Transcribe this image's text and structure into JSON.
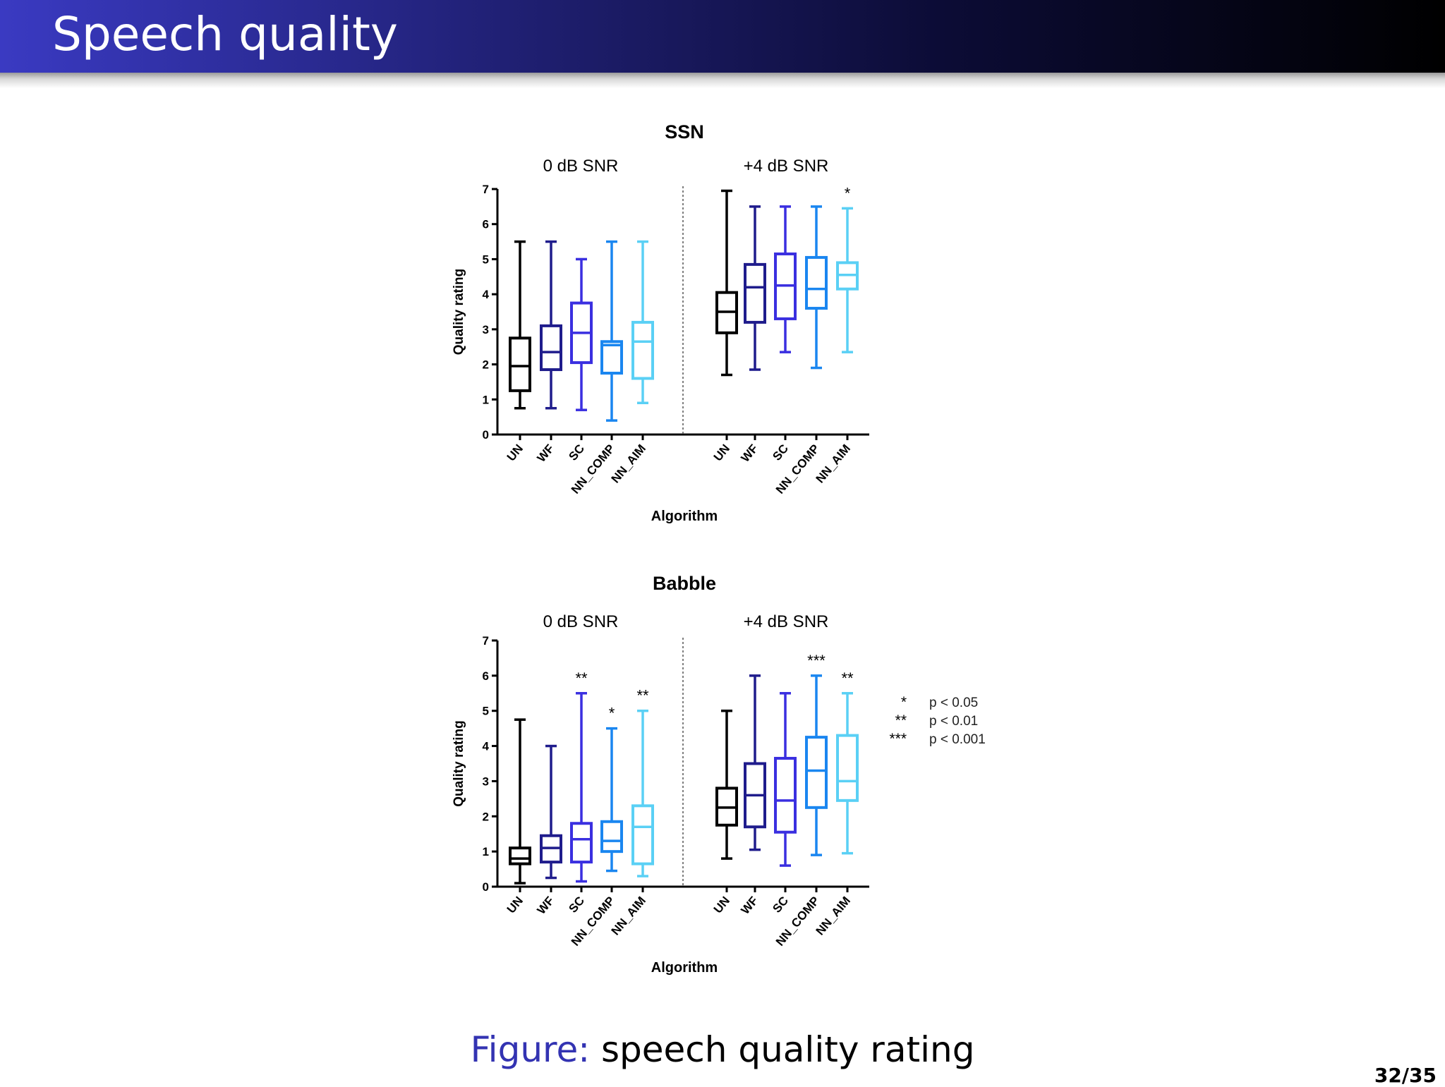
{
  "slide": {
    "title": "Speech quality",
    "caption_label": "Figure:",
    "caption_text": "speech quality rating",
    "page_number": "32/35"
  },
  "colors": {
    "UN": "#000000",
    "WF": "#1f1c8c",
    "SC": "#3a2fe0",
    "NN_COMP": "#1a86f0",
    "NN_AIM": "#5ad0f5"
  },
  "chart_data": [
    {
      "type": "box",
      "title": "SSN",
      "ylabel": "Quality rating",
      "xlabel": "Algorithm",
      "ylim": [
        0,
        7
      ],
      "yticks": [
        "0",
        "1",
        "2",
        "3",
        "4",
        "5",
        "6",
        "7"
      ],
      "categories": [
        "UN",
        "WF",
        "SC",
        "NN_COMP",
        "NN_AIM"
      ],
      "panels": [
        {
          "label": "0 dB SNR",
          "boxes": [
            {
              "category": "UN",
              "min": 0.75,
              "q1": 1.25,
              "median": 1.95,
              "q3": 2.75,
              "max": 5.5,
              "sig": ""
            },
            {
              "category": "WF",
              "min": 0.75,
              "q1": 1.85,
              "median": 2.35,
              "q3": 3.1,
              "max": 5.5,
              "sig": ""
            },
            {
              "category": "SC",
              "min": 0.7,
              "q1": 2.05,
              "median": 2.9,
              "q3": 3.75,
              "max": 5.0,
              "sig": ""
            },
            {
              "category": "NN_COMP",
              "min": 0.4,
              "q1": 1.75,
              "median": 2.55,
              "q3": 2.65,
              "max": 5.5,
              "sig": ""
            },
            {
              "category": "NN_AIM",
              "min": 0.9,
              "q1": 1.6,
              "median": 2.65,
              "q3": 3.2,
              "max": 5.5,
              "sig": ""
            }
          ]
        },
        {
          "label": "+4 dB SNR",
          "boxes": [
            {
              "category": "UN",
              "min": 1.7,
              "q1": 2.9,
              "median": 3.5,
              "q3": 4.05,
              "max": 6.95,
              "sig": ""
            },
            {
              "category": "WF",
              "min": 1.85,
              "q1": 3.2,
              "median": 4.2,
              "q3": 4.85,
              "max": 6.5,
              "sig": ""
            },
            {
              "category": "SC",
              "min": 2.35,
              "q1": 3.3,
              "median": 4.25,
              "q3": 5.15,
              "max": 6.5,
              "sig": ""
            },
            {
              "category": "NN_COMP",
              "min": 1.9,
              "q1": 3.6,
              "median": 4.15,
              "q3": 5.05,
              "max": 6.5,
              "sig": ""
            },
            {
              "category": "NN_AIM",
              "min": 2.35,
              "q1": 4.15,
              "median": 4.55,
              "q3": 4.9,
              "max": 6.45,
              "sig": "*"
            }
          ]
        }
      ]
    },
    {
      "type": "box",
      "title": "Babble",
      "ylabel": "Quality rating",
      "xlabel": "Algorithm",
      "ylim": [
        0,
        7
      ],
      "yticks": [
        "0",
        "1",
        "2",
        "3",
        "4",
        "5",
        "6",
        "7"
      ],
      "categories": [
        "UN",
        "WF",
        "SC",
        "NN_COMP",
        "NN_AIM"
      ],
      "panels": [
        {
          "label": "0 dB SNR",
          "boxes": [
            {
              "category": "UN",
              "min": 0.1,
              "q1": 0.65,
              "median": 0.8,
              "q3": 1.1,
              "max": 4.75,
              "sig": ""
            },
            {
              "category": "WF",
              "min": 0.25,
              "q1": 0.7,
              "median": 1.1,
              "q3": 1.45,
              "max": 4.0,
              "sig": ""
            },
            {
              "category": "SC",
              "min": 0.15,
              "q1": 0.7,
              "median": 1.35,
              "q3": 1.8,
              "max": 5.5,
              "sig": "**"
            },
            {
              "category": "NN_COMP",
              "min": 0.45,
              "q1": 1.0,
              "median": 1.3,
              "q3": 1.85,
              "max": 4.5,
              "sig": "*"
            },
            {
              "category": "NN_AIM",
              "min": 0.3,
              "q1": 0.65,
              "median": 1.7,
              "q3": 2.3,
              "max": 5.0,
              "sig": "**"
            }
          ]
        },
        {
          "label": "+4 dB SNR",
          "boxes": [
            {
              "category": "UN",
              "min": 0.8,
              "q1": 1.75,
              "median": 2.25,
              "q3": 2.8,
              "max": 5.0,
              "sig": ""
            },
            {
              "category": "WF",
              "min": 1.05,
              "q1": 1.7,
              "median": 2.6,
              "q3": 3.5,
              "max": 6.0,
              "sig": ""
            },
            {
              "category": "SC",
              "min": 0.6,
              "q1": 1.55,
              "median": 2.45,
              "q3": 3.65,
              "max": 5.5,
              "sig": ""
            },
            {
              "category": "NN_COMP",
              "min": 0.9,
              "q1": 2.25,
              "median": 3.3,
              "q3": 4.25,
              "max": 6.0,
              "sig": "***"
            },
            {
              "category": "NN_AIM",
              "min": 0.95,
              "q1": 2.45,
              "median": 3.0,
              "q3": 4.3,
              "max": 5.5,
              "sig": "**"
            }
          ]
        }
      ]
    }
  ],
  "significance_legend": [
    {
      "stars": "*",
      "label": "p < 0.05"
    },
    {
      "stars": "**",
      "label": "p < 0.01"
    },
    {
      "stars": "***",
      "label": "p < 0.001"
    }
  ]
}
